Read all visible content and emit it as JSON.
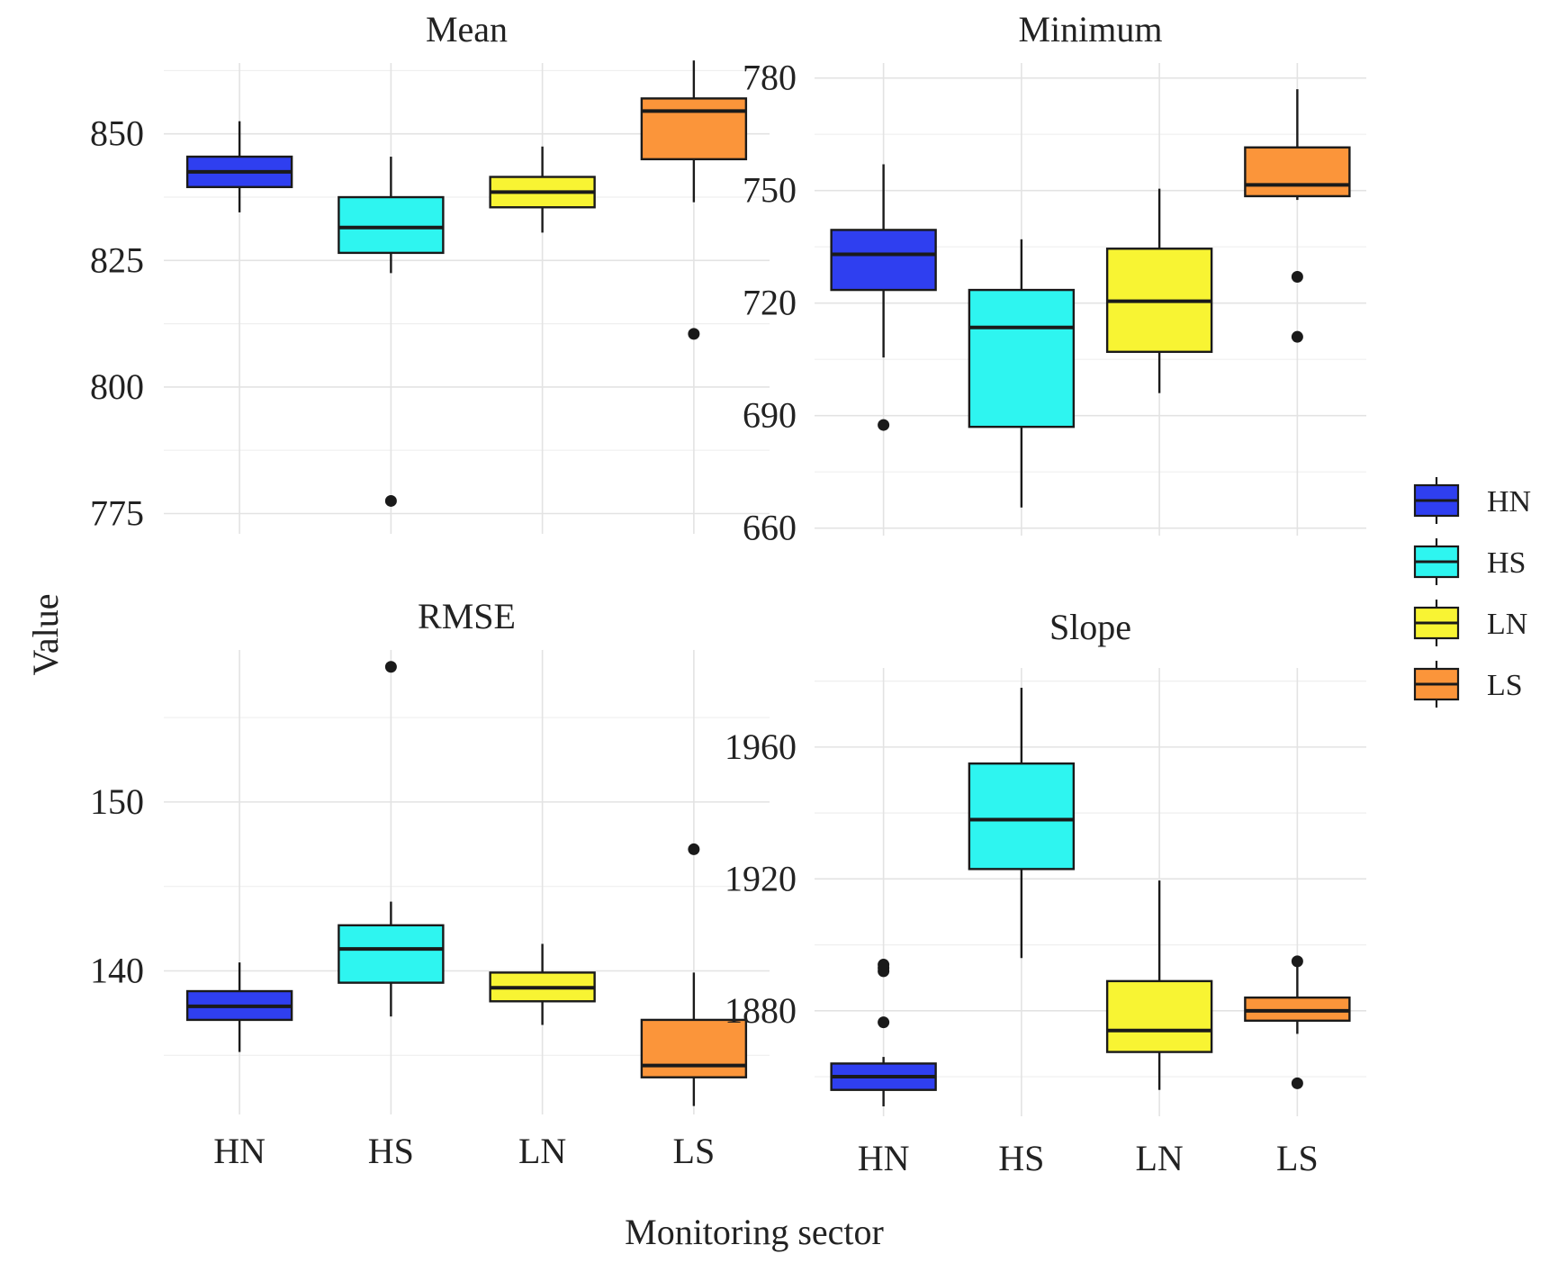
{
  "chart_data": {
    "type": "boxplot",
    "xlabel": "Monitoring sector",
    "ylabel": "Value",
    "categories": [
      "HN",
      "HS",
      "LN",
      "LS"
    ],
    "colors": {
      "HN": "#2f3ff0",
      "HS": "#2ef5f0",
      "LN": "#f8f433",
      "LS": "#fb953a"
    },
    "legend": {
      "placement": "right",
      "entries": [
        "HN",
        "HS",
        "LN",
        "LS"
      ]
    },
    "grid": true,
    "panels": [
      {
        "title": "Mean",
        "ylim": [
          771,
          864
        ],
        "yticks": [
          775,
          800,
          825,
          850
        ],
        "show_x_ticks": false,
        "boxes": [
          {
            "category": "HN",
            "whisker_low": 834.5,
            "q1": 839.5,
            "median": 842.5,
            "q3": 845.5,
            "whisker_high": 852.5,
            "outliers": []
          },
          {
            "category": "HS",
            "whisker_low": 822.5,
            "q1": 826.5,
            "median": 831.5,
            "q3": 837.5,
            "whisker_high": 845.5,
            "outliers": [
              777.5
            ]
          },
          {
            "category": "LN",
            "whisker_low": 830.5,
            "q1": 835.5,
            "median": 838.5,
            "q3": 841.5,
            "whisker_high": 847.5,
            "outliers": []
          },
          {
            "category": "LS",
            "whisker_low": 836.5,
            "q1": 845,
            "median": 854.5,
            "q3": 857,
            "whisker_high": 864.5,
            "outliers": [
              810.5
            ]
          }
        ]
      },
      {
        "title": "Minimum",
        "ylim": [
          658,
          784
        ],
        "yticks": [
          660,
          690,
          720,
          750,
          780
        ],
        "show_x_ticks": false,
        "boxes": [
          {
            "category": "HN",
            "whisker_low": 705.5,
            "q1": 723.5,
            "median": 733,
            "q3": 739.5,
            "whisker_high": 757,
            "outliers": [
              687.5
            ]
          },
          {
            "category": "HS",
            "whisker_low": 665.5,
            "q1": 687,
            "median": 713.5,
            "q3": 723.5,
            "whisker_high": 737,
            "outliers": []
          },
          {
            "category": "LN",
            "whisker_low": 696,
            "q1": 707,
            "median": 720.5,
            "q3": 734.5,
            "whisker_high": 750.5,
            "outliers": []
          },
          {
            "category": "LS",
            "whisker_low": 747.5,
            "q1": 748.5,
            "median": 751.5,
            "q3": 761.5,
            "whisker_high": 777,
            "outliers": [
              727,
              711
            ]
          }
        ]
      },
      {
        "title": "RMSE",
        "ylim": [
          131.5,
          159
        ],
        "yticks": [
          140,
          150
        ],
        "show_x_ticks": true,
        "boxes": [
          {
            "category": "HN",
            "whisker_low": 135.2,
            "q1": 137.1,
            "median": 137.9,
            "q3": 138.8,
            "whisker_high": 140.5,
            "outliers": []
          },
          {
            "category": "HS",
            "whisker_low": 137.3,
            "q1": 139.3,
            "median": 141.3,
            "q3": 142.7,
            "whisker_high": 144.1,
            "outliers": [
              158
            ]
          },
          {
            "category": "LN",
            "whisker_low": 136.8,
            "q1": 138.2,
            "median": 139.0,
            "q3": 139.9,
            "whisker_high": 141.6,
            "outliers": []
          },
          {
            "category": "LS",
            "whisker_low": 132.0,
            "q1": 133.7,
            "median": 134.4,
            "q3": 137.1,
            "whisker_high": 139.9,
            "outliers": [
              147.2
            ]
          }
        ]
      },
      {
        "title": "Slope",
        "ylim": [
          1848,
          1984
        ],
        "yticks": [
          1880,
          1920,
          1960
        ],
        "show_x_ticks": true,
        "boxes": [
          {
            "category": "HN",
            "whisker_low": 1851,
            "q1": 1856,
            "median": 1860,
            "q3": 1864,
            "whisker_high": 1866,
            "outliers": [
              1876.5,
              1892,
              1893,
              1894
            ]
          },
          {
            "category": "HS",
            "whisker_low": 1896,
            "q1": 1923,
            "median": 1938,
            "q3": 1955,
            "whisker_high": 1978,
            "outliers": []
          },
          {
            "category": "LN",
            "whisker_low": 1856,
            "q1": 1867.5,
            "median": 1874,
            "q3": 1889,
            "whisker_high": 1919.5,
            "outliers": []
          },
          {
            "category": "LS",
            "whisker_low": 1873,
            "q1": 1877,
            "median": 1880,
            "q3": 1884,
            "whisker_high": 1894,
            "outliers": [
              1895,
              1858
            ]
          }
        ]
      }
    ]
  }
}
